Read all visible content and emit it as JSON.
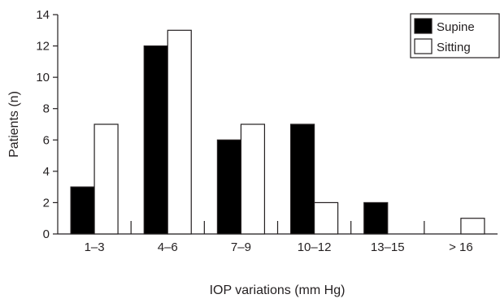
{
  "chart_data": {
    "type": "bar",
    "title": "",
    "xlabel": "IOP variations (mm Hg)",
    "ylabel": "Patients (n)",
    "categories": [
      "1–3",
      "4–6",
      "7–9",
      "10–12",
      "13–15",
      "> 16"
    ],
    "series": [
      {
        "name": "Supine",
        "values": [
          3,
          12,
          6,
          7,
          2,
          0
        ],
        "color": "#000000"
      },
      {
        "name": "Sitting",
        "values": [
          7,
          13,
          7,
          2,
          0,
          1
        ],
        "color": "#ffffff"
      }
    ],
    "ylim": [
      0,
      14
    ],
    "yticks": [
      0,
      2,
      4,
      6,
      8,
      10,
      12,
      14
    ],
    "grid": false,
    "legend_position": "top-right",
    "colors": {
      "axis": "#231f20",
      "bar_stroke": "#231f20"
    }
  }
}
